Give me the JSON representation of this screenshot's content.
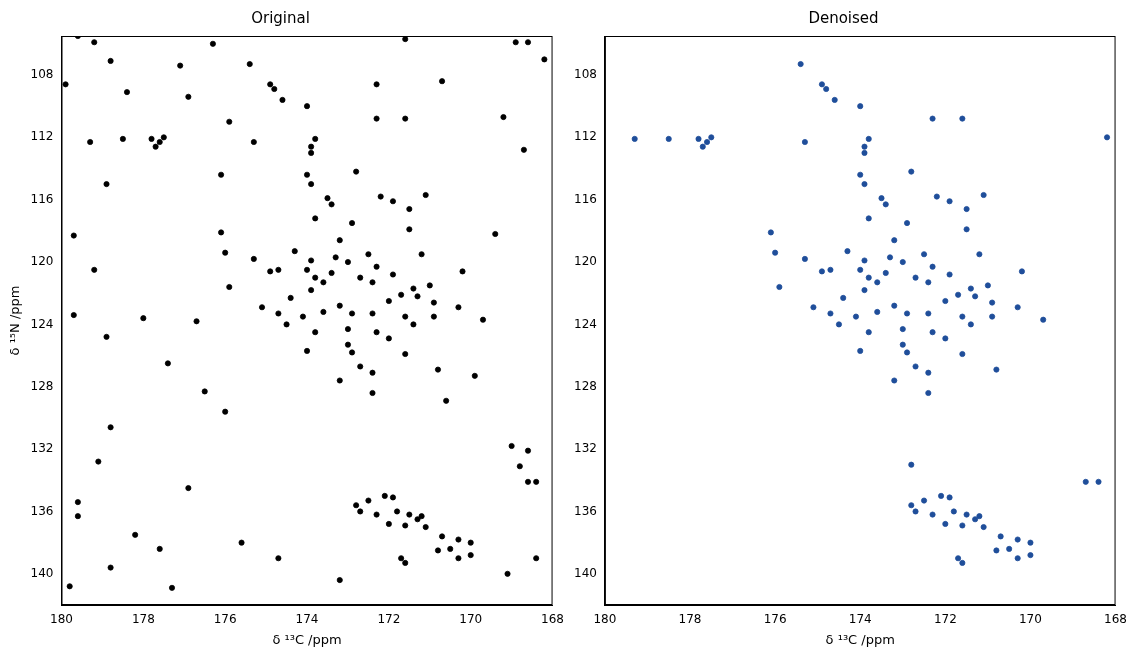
{
  "chart_data": [
    {
      "type": "scatter",
      "title": "Original",
      "x_label": "δ ¹³C /ppm",
      "y_label": "δ ¹⁵N /ppm",
      "color": "#000000",
      "marker": "circle",
      "grid": false,
      "xlim": [
        180,
        168
      ],
      "ylim": [
        142,
        105.5
      ],
      "xticks": [
        180,
        178,
        176,
        174,
        172,
        170,
        168
      ],
      "yticks": [
        108,
        112,
        116,
        120,
        124,
        128,
        132,
        136,
        140
      ],
      "x": [
        177.8,
        177.6,
        177.7,
        177.5,
        178.5,
        175.4,
        174.9,
        174.8,
        174.6,
        174.0,
        172.3,
        171.6,
        175.3,
        173.8,
        173.9,
        173.9,
        172.8,
        174.0,
        173.9,
        173.5,
        173.4,
        172.2,
        171.9,
        171.1,
        171.5,
        173.8,
        172.9,
        171.5,
        176.1,
        176.0,
        175.3,
        174.3,
        173.9,
        173.2,
        173.3,
        173.0,
        172.5,
        172.3,
        171.2,
        174.9,
        174.7,
        174.0,
        173.8,
        173.6,
        173.9,
        173.4,
        172.7,
        172.4,
        171.9,
        171.4,
        171.7,
        171.3,
        171.0,
        172.0,
        170.9,
        170.2,
        175.9,
        175.1,
        174.4,
        174.7,
        174.1,
        173.6,
        173.2,
        172.9,
        172.4,
        173.0,
        173.8,
        174.5,
        172.3,
        171.6,
        171.4,
        170.9,
        170.3,
        169.7,
        173.0,
        172.9,
        172.0,
        171.6,
        174.0,
        172.7,
        172.4,
        173.2,
        170.8,
        172.4,
        172.8,
        172.5,
        172.1,
        171.9,
        172.7,
        172.3,
        171.8,
        171.5,
        171.3,
        172.0,
        171.6,
        171.1,
        171.2,
        170.7,
        170.3,
        170.0,
        170.5,
        170.8,
        170.0,
        170.3,
        171.6,
        171.7,
        168.6,
        168.4,
        179.6,
        179.2,
        178.8,
        179.9,
        178.4,
        177.1,
        176.3,
        168.9,
        168.6,
        176.9,
        175.9,
        179.3,
        178.9,
        176.1,
        179.7,
        179.2,
        176.7,
        178.0,
        179.7,
        178.9,
        177.4,
        176.5,
        178.8,
        176.0,
        179.1,
        176.9,
        179.6,
        179.6,
        178.2,
        177.6,
        178.8,
        179.8,
        177.3,
        175.6,
        174.7,
        173.2,
        169.1,
        168.4,
        169.0,
        168.6,
        168.8,
        170.6,
        169.9,
        169.4,
        168.7,
        169.2,
        170.7,
        168.2,
        172.3,
        171.6
      ],
      "values": [
        112.1,
        112.3,
        112.6,
        112.0,
        112.1,
        107.3,
        108.6,
        108.9,
        109.6,
        110.0,
        110.8,
        110.8,
        112.3,
        112.1,
        112.6,
        113.0,
        114.2,
        114.4,
        115.0,
        115.9,
        116.3,
        115.8,
        116.1,
        115.7,
        116.6,
        117.2,
        117.5,
        117.9,
        118.1,
        119.4,
        119.8,
        119.3,
        119.9,
        118.6,
        119.7,
        120.0,
        119.5,
        120.3,
        119.5,
        120.6,
        120.5,
        120.5,
        121.0,
        121.3,
        121.8,
        120.7,
        121.0,
        121.3,
        120.8,
        121.7,
        122.1,
        122.2,
        121.5,
        122.5,
        122.6,
        120.6,
        121.6,
        122.9,
        122.3,
        123.3,
        123.5,
        123.2,
        122.8,
        123.3,
        123.3,
        124.3,
        124.5,
        124.0,
        124.5,
        123.5,
        124.0,
        123.5,
        122.9,
        123.7,
        125.3,
        125.8,
        124.9,
        125.9,
        125.7,
        126.7,
        127.1,
        127.6,
        126.9,
        128.4,
        135.6,
        135.3,
        135.0,
        135.1,
        136.0,
        136.2,
        136.0,
        136.2,
        136.5,
        136.8,
        136.9,
        137.0,
        136.3,
        137.6,
        137.8,
        138.0,
        138.4,
        138.5,
        138.8,
        139.0,
        139.3,
        139.0,
        134.1,
        134.1,
        105.5,
        105.9,
        107.1,
        108.6,
        109.1,
        107.4,
        106.0,
        105.9,
        105.9,
        109.4,
        111.0,
        112.3,
        115.0,
        114.4,
        118.3,
        120.5,
        123.8,
        123.6,
        123.4,
        124.8,
        126.5,
        128.3,
        130.6,
        129.6,
        132.8,
        134.5,
        135.4,
        136.3,
        137.5,
        138.4,
        139.6,
        140.8,
        140.9,
        138.0,
        139.0,
        140.4,
        140.0,
        139.0,
        131.8,
        132.1,
        133.1,
        128.9,
        127.3,
        118.2,
        112.8,
        110.7,
        108.4,
        107.0,
        108.6,
        105.7
      ]
    },
    {
      "type": "scatter",
      "title": "Denoised",
      "x_label": "δ ¹³C /ppm",
      "color": "#1f4e9a",
      "marker": "circle",
      "grid": false,
      "xlim": [
        180,
        168
      ],
      "ylim": [
        142,
        105.5
      ],
      "xticks": [
        180,
        178,
        176,
        174,
        172,
        170,
        168
      ],
      "yticks": [
        108,
        112,
        116,
        120,
        124,
        128,
        132,
        136,
        140
      ],
      "x": [
        177.8,
        177.6,
        177.7,
        177.5,
        178.5,
        175.4,
        174.9,
        174.8,
        174.6,
        174.0,
        172.3,
        171.6,
        175.3,
        173.8,
        173.9,
        173.9,
        172.8,
        174.0,
        173.9,
        173.5,
        173.4,
        172.2,
        171.9,
        171.1,
        171.5,
        173.8,
        172.9,
        171.5,
        176.1,
        176.0,
        175.3,
        174.3,
        173.9,
        173.2,
        173.3,
        173.0,
        172.5,
        172.3,
        171.2,
        174.9,
        174.7,
        174.0,
        173.8,
        173.6,
        173.9,
        173.4,
        172.7,
        172.4,
        171.9,
        171.4,
        171.7,
        171.3,
        171.0,
        172.0,
        170.9,
        170.2,
        175.9,
        175.1,
        174.4,
        174.7,
        174.1,
        173.6,
        173.2,
        172.9,
        172.4,
        173.0,
        173.8,
        174.5,
        172.3,
        171.6,
        171.4,
        170.9,
        170.3,
        169.7,
        173.0,
        172.9,
        172.0,
        171.6,
        174.0,
        172.7,
        172.4,
        173.2,
        170.8,
        172.4,
        172.8,
        172.5,
        172.1,
        171.9,
        172.7,
        172.3,
        171.8,
        171.5,
        171.3,
        172.0,
        171.6,
        171.1,
        171.2,
        170.7,
        170.3,
        170.0,
        170.5,
        170.8,
        170.0,
        170.3,
        171.6,
        171.7,
        168.7,
        168.4,
        168.2,
        179.3,
        172.8
      ],
      "values": [
        112.1,
        112.3,
        112.6,
        112.0,
        112.1,
        107.3,
        108.6,
        108.9,
        109.6,
        110.0,
        110.8,
        110.8,
        112.3,
        112.1,
        112.6,
        113.0,
        114.2,
        114.4,
        115.0,
        115.9,
        116.3,
        115.8,
        116.1,
        115.7,
        116.6,
        117.2,
        117.5,
        117.9,
        118.1,
        119.4,
        119.8,
        119.3,
        119.9,
        118.6,
        119.7,
        120.0,
        119.5,
        120.3,
        119.5,
        120.6,
        120.5,
        120.5,
        121.0,
        121.3,
        121.8,
        120.7,
        121.0,
        121.3,
        120.8,
        121.7,
        122.1,
        122.2,
        121.5,
        122.5,
        122.6,
        120.6,
        121.6,
        122.9,
        122.3,
        123.3,
        123.5,
        123.2,
        122.8,
        123.3,
        123.3,
        124.3,
        124.5,
        124.0,
        124.5,
        123.5,
        124.0,
        123.5,
        122.9,
        123.7,
        125.3,
        125.8,
        124.9,
        125.9,
        125.7,
        126.7,
        127.1,
        127.6,
        126.9,
        128.4,
        135.6,
        135.3,
        135.0,
        135.1,
        136.0,
        136.2,
        136.0,
        136.2,
        136.5,
        136.8,
        136.9,
        137.0,
        136.3,
        137.6,
        137.8,
        138.0,
        138.4,
        138.5,
        138.8,
        139.0,
        139.3,
        139.0,
        134.1,
        134.1,
        112.0,
        112.1,
        133.0
      ]
    }
  ]
}
